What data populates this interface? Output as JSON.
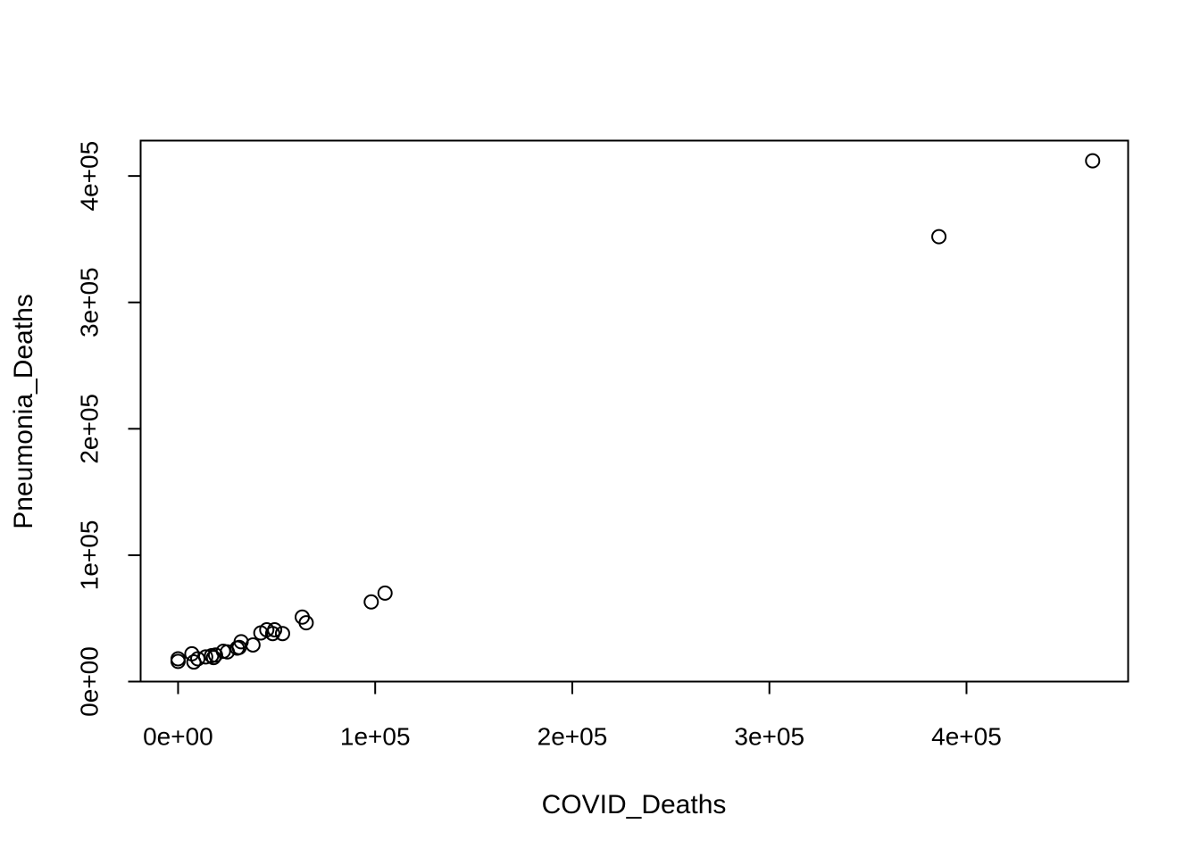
{
  "chart_data": {
    "type": "scatter",
    "title": "",
    "xlabel": "COVID_Deaths",
    "ylabel": "Pneumonia_Deaths",
    "xlim": [
      -19000,
      482000
    ],
    "ylim": [
      0,
      428000
    ],
    "x_ticks": [
      {
        "value": 0,
        "label": "0e+00"
      },
      {
        "value": 100000,
        "label": "1e+05"
      },
      {
        "value": 200000,
        "label": "2e+05"
      },
      {
        "value": 300000,
        "label": "3e+05"
      },
      {
        "value": 400000,
        "label": "4e+05"
      }
    ],
    "y_ticks": [
      {
        "value": 0,
        "label": "0e+00"
      },
      {
        "value": 100000,
        "label": "1e+05"
      },
      {
        "value": 200000,
        "label": "2e+05"
      },
      {
        "value": 300000,
        "label": "3e+05"
      },
      {
        "value": 400000,
        "label": "4e+05"
      }
    ],
    "grid": false,
    "marker": "open-circle",
    "marker_color": "#000000",
    "points": [
      {
        "x": 0,
        "y": 16000
      },
      {
        "x": 0,
        "y": 18000
      },
      {
        "x": 7000,
        "y": 22000
      },
      {
        "x": 8000,
        "y": 15500
      },
      {
        "x": 10000,
        "y": 18000
      },
      {
        "x": 14000,
        "y": 19500
      },
      {
        "x": 17000,
        "y": 20500
      },
      {
        "x": 18000,
        "y": 19000
      },
      {
        "x": 19000,
        "y": 21000
      },
      {
        "x": 23000,
        "y": 24000
      },
      {
        "x": 25000,
        "y": 23500
      },
      {
        "x": 30000,
        "y": 26500
      },
      {
        "x": 31000,
        "y": 27000
      },
      {
        "x": 32000,
        "y": 31500
      },
      {
        "x": 38000,
        "y": 29000
      },
      {
        "x": 42000,
        "y": 38500
      },
      {
        "x": 45000,
        "y": 41000
      },
      {
        "x": 48000,
        "y": 38000
      },
      {
        "x": 49000,
        "y": 41000
      },
      {
        "x": 53000,
        "y": 38000
      },
      {
        "x": 63000,
        "y": 51000
      },
      {
        "x": 65000,
        "y": 46500
      },
      {
        "x": 98000,
        "y": 63000
      },
      {
        "x": 105000,
        "y": 70000
      },
      {
        "x": 386000,
        "y": 352000
      },
      {
        "x": 464000,
        "y": 412000
      }
    ]
  }
}
